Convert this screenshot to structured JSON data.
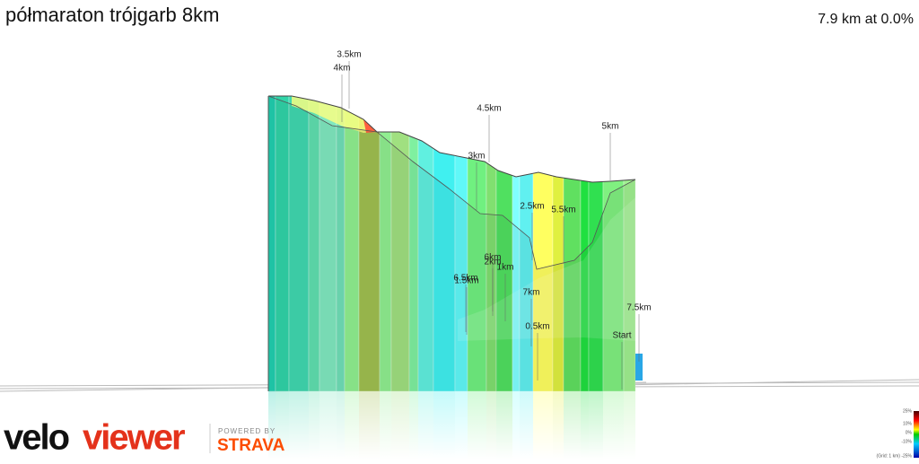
{
  "header": {
    "title": "półmaraton trójgarb 8km",
    "stat": "7.9 km at 0.0%"
  },
  "markers": [
    "3.5km",
    "4km",
    "4.5km",
    "3km",
    "5km",
    "2.5km",
    "5.5km",
    "6km",
    "2km",
    "1km",
    "6.5km",
    "1.5km",
    "7km",
    "0.5km",
    "7.5km",
    "Start"
  ],
  "branding": {
    "logo_velo": "velo",
    "logo_viewer": "viewer",
    "powered": "POWERED BY",
    "strava": "STRAVA"
  },
  "legend": {
    "labels": [
      "25%",
      "10%",
      "0%",
      "-10%",
      "(Grid: 1 km) -25%"
    ]
  }
}
